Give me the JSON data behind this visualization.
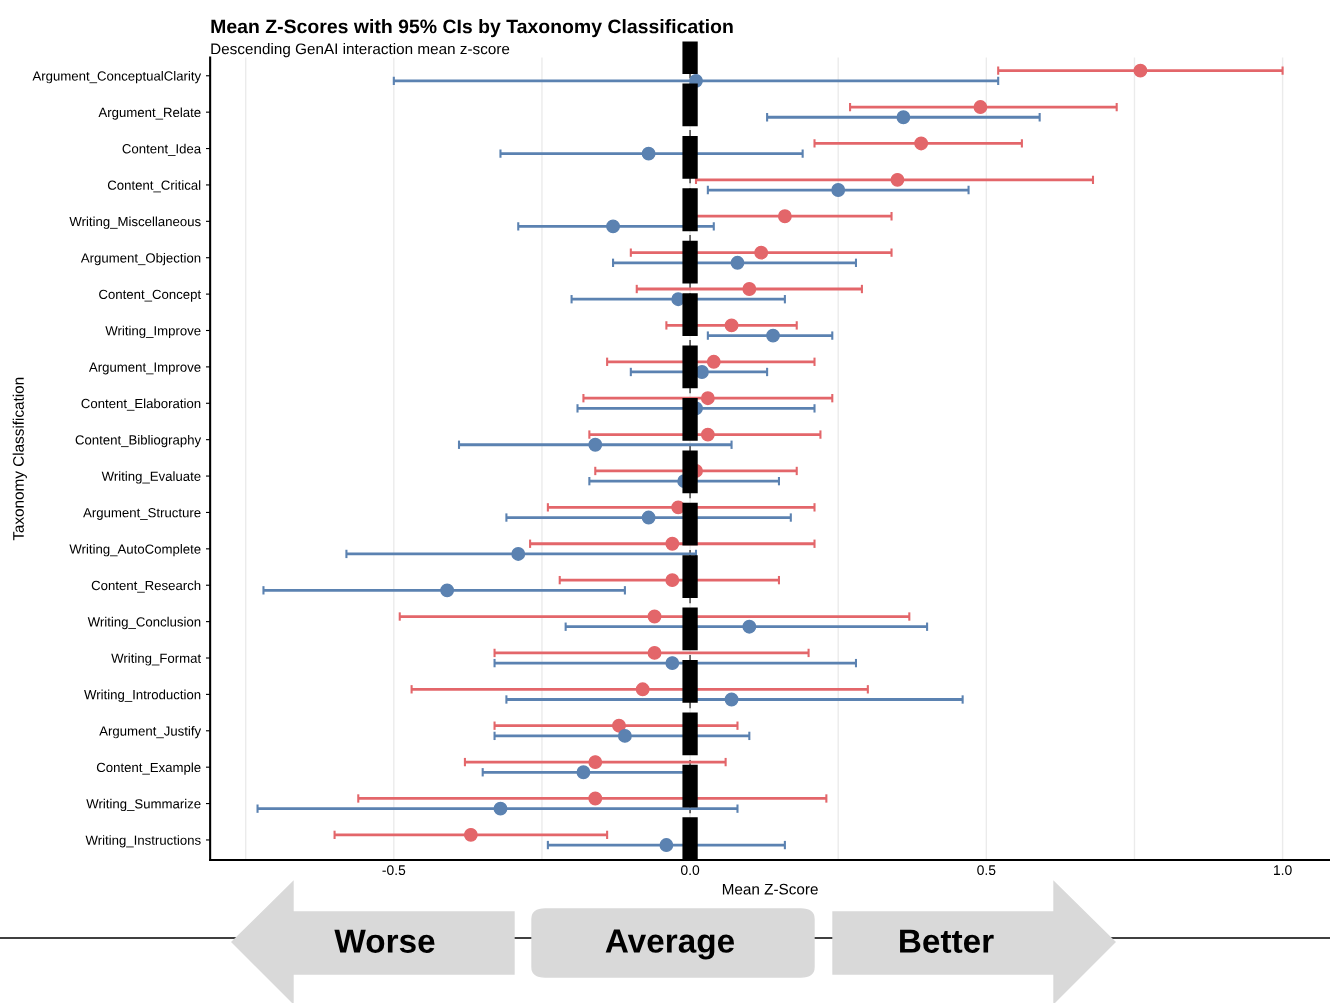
{
  "chart_data": {
    "type": "scatter",
    "orientation": "horizontal",
    "title": "Mean Z-Scores with 95% CIs by Taxonomy Classification",
    "subtitle": "Descending GenAI interaction mean z-score",
    "xlabel": "Mean Z-Score",
    "ylabel": "Taxonomy Classification",
    "categories": [
      "Argument_ConceptualClarity",
      "Argument_Relate",
      "Content_Idea",
      "Content_Critical",
      "Writing_Miscellaneous",
      "Argument_Objection",
      "Content_Concept",
      "Writing_Improve",
      "Argument_Improve",
      "Content_Elaboration",
      "Content_Bibliography",
      "Writing_Evaluate",
      "Argument_Structure",
      "Writing_AutoComplete",
      "Content_Research",
      "Writing_Conclusion",
      "Writing_Format",
      "Writing_Introduction",
      "Argument_Justify",
      "Content_Example",
      "Writing_Summarize",
      "Writing_Instructions"
    ],
    "series": [
      {
        "color": "#e3666a",
        "values": [
          0.76,
          0.49,
          0.39,
          0.35,
          0.16,
          0.12,
          0.1,
          0.07,
          0.04,
          0.03,
          0.03,
          0.01,
          -0.02,
          -0.03,
          -0.03,
          -0.06,
          -0.06,
          -0.08,
          -0.12,
          -0.16,
          -0.16,
          -0.37
        ],
        "errors": [
          [
            0.52,
            1.0
          ],
          [
            0.27,
            0.72
          ],
          [
            0.21,
            0.56
          ],
          [
            0.01,
            0.68
          ],
          [
            -0.01,
            0.34
          ],
          [
            -0.1,
            0.34
          ],
          [
            -0.09,
            0.29
          ],
          [
            -0.04,
            0.18
          ],
          [
            -0.14,
            0.21
          ],
          [
            -0.18,
            0.24
          ],
          [
            -0.17,
            0.22
          ],
          [
            -0.16,
            0.18
          ],
          [
            -0.24,
            0.21
          ],
          [
            -0.27,
            0.21
          ],
          [
            -0.22,
            0.15
          ],
          [
            -0.49,
            0.37
          ],
          [
            -0.33,
            0.2
          ],
          [
            -0.47,
            0.3
          ],
          [
            -0.33,
            0.08
          ],
          [
            -0.38,
            0.06
          ],
          [
            -0.56,
            0.23
          ],
          [
            -0.6,
            -0.14
          ]
        ]
      },
      {
        "color": "#5b82b1",
        "values": [
          0.01,
          0.36,
          -0.07,
          0.25,
          -0.13,
          0.08,
          -0.02,
          0.14,
          0.02,
          0.01,
          -0.16,
          -0.01,
          -0.07,
          -0.29,
          -0.41,
          0.1,
          -0.03,
          0.07,
          -0.11,
          -0.18,
          -0.32,
          -0.04
        ],
        "errors": [
          [
            -0.5,
            0.52
          ],
          [
            0.13,
            0.59
          ],
          [
            -0.32,
            0.19
          ],
          [
            0.03,
            0.47
          ],
          [
            -0.29,
            0.04
          ],
          [
            -0.13,
            0.28
          ],
          [
            -0.2,
            0.16
          ],
          [
            0.03,
            0.24
          ],
          [
            -0.1,
            0.13
          ],
          [
            -0.19,
            0.21
          ],
          [
            -0.39,
            0.07
          ],
          [
            -0.17,
            0.15
          ],
          [
            -0.31,
            0.17
          ],
          [
            -0.58,
            0.01
          ],
          [
            -0.72,
            -0.11
          ],
          [
            -0.21,
            0.4
          ],
          [
            -0.33,
            0.28
          ],
          [
            -0.31,
            0.46
          ],
          [
            -0.33,
            0.1
          ],
          [
            -0.35,
            -0.01
          ],
          [
            -0.73,
            0.08
          ],
          [
            -0.24,
            0.16
          ]
        ]
      }
    ],
    "xlim": [
      -0.81,
      1.08
    ],
    "xticks": [
      -0.5,
      {
        "value": -0.75,
        "label": null
      },
      {
        "value": -0.25,
        "label": null
      },
      {
        "value": 0.0,
        "label": "0.0"
      },
      {
        "value": 0.25,
        "label": null
      },
      0.5,
      {
        "value": 0.75,
        "label": null
      },
      {
        "value": 1.0,
        "label": "1.0"
      }
    ],
    "grid": "x",
    "marker": "circle",
    "legend": false,
    "ref_lines": [
      {
        "axis": "x",
        "value": 0,
        "color": "#555555",
        "line_style": "dashed"
      },
      {
        "axis": "x",
        "value": 0,
        "color": "#000000",
        "line_style": "dashed"
      }
    ],
    "annotations": [
      "Worse",
      "Average",
      "Better"
    ]
  }
}
